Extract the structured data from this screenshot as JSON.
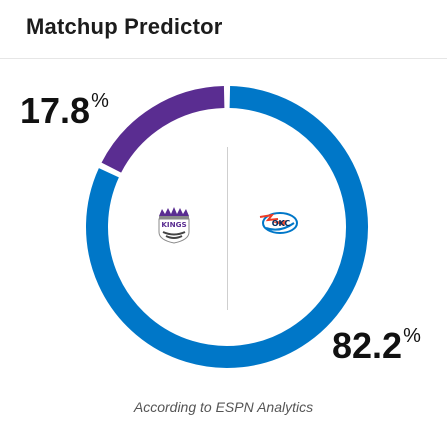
{
  "widget": {
    "title": "Matchup Predictor",
    "attribution": "According to ESPN Analytics"
  },
  "teams": {
    "away": {
      "logo_text": "KINGS",
      "logo_icon": "kings-crown-logo-icon",
      "color": "#5a2d91",
      "win_pct": 17.8,
      "win_pct_label": "17.8",
      "pct_symbol": "%"
    },
    "home": {
      "logo_text": "OKC",
      "logo_icon": "thunder-logo-icon",
      "color": "#0077c8",
      "win_pct": 82.2,
      "win_pct_label": "82.2",
      "pct_symbol": "%"
    }
  },
  "colors": {
    "away": "#5a2d91",
    "home": "#0077c8",
    "divider": "#cfcfcf"
  }
}
